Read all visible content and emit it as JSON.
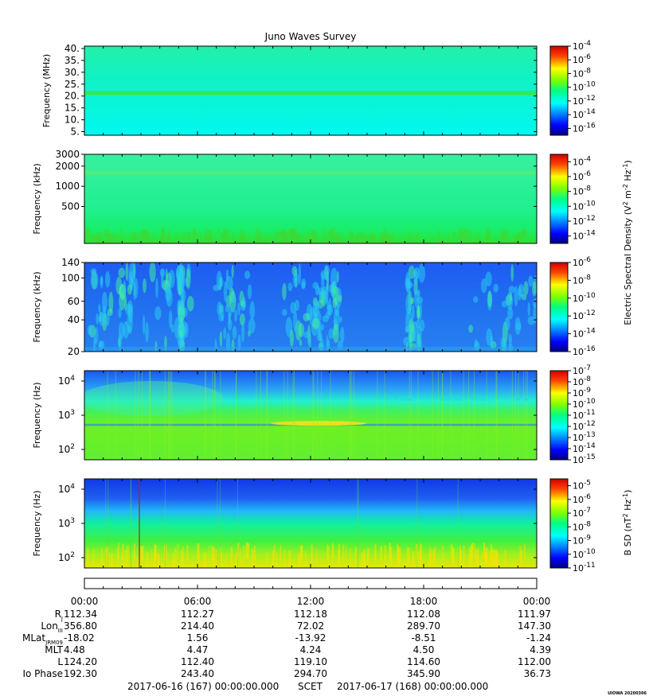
{
  "title": "Juno Waves Survey",
  "chart_data": [
    {
      "type": "heatmap",
      "ylabel": "Frequency (MHz)",
      "yscale": "linear",
      "ylim": [
        3.5,
        41
      ],
      "yticks": [
        "40.",
        "35.",
        "30.",
        "25.",
        "20.",
        "15.",
        "10.",
        "5."
      ],
      "yticks_values": [
        40,
        35,
        30,
        25,
        20,
        15,
        10,
        5
      ],
      "colorbar": {
        "label": "",
        "exponents": [
          "-4",
          "-6",
          "-8",
          "-10",
          "-12",
          "-14",
          "-16"
        ],
        "range_exp": [
          -17,
          -4
        ]
      }
    },
    {
      "type": "heatmap",
      "ylabel": "Frequency (kHz)",
      "yscale": "log",
      "ylim": [
        140,
        3000
      ],
      "yticks": [
        "3000",
        "2000",
        "1000",
        "500"
      ],
      "yticks_values": [
        3000,
        2000,
        1000,
        500
      ],
      "colorbar": {
        "label": "",
        "exponents": [
          "-4",
          "-6",
          "-8",
          "-10",
          "-12",
          "-14"
        ],
        "range_exp": [
          -15,
          -3
        ]
      }
    },
    {
      "type": "heatmap",
      "ylabel": "Frequency (kHz)",
      "yscale": "log",
      "ylim": [
        20,
        140
      ],
      "yticks": [
        "140",
        "100",
        "60",
        "40",
        "20"
      ],
      "yticks_values": [
        140,
        100,
        60,
        40,
        20
      ],
      "colorbar": {
        "label": "",
        "exponents": [
          "-6",
          "-8",
          "-10",
          "-12",
          "-14",
          "-16"
        ],
        "range_exp": [
          -16,
          -6
        ]
      }
    },
    {
      "type": "heatmap",
      "ylabel": "Frequency (Hz)",
      "yscale": "log",
      "ylim": [
        50,
        20000
      ],
      "yticks": [
        "10",
        "10",
        "10"
      ],
      "yticks_sup": [
        "4",
        "3",
        "2"
      ],
      "yticks_values": [
        10000,
        1000,
        100
      ],
      "colorbar": {
        "label": "",
        "exponents": [
          "-7",
          "-8",
          "-9",
          "-10",
          "-11",
          "-12",
          "-13",
          "-14",
          "-15"
        ],
        "range_exp": [
          -15,
          -7
        ]
      }
    },
    {
      "type": "heatmap",
      "ylabel": "Frequency (Hz)",
      "yscale": "log",
      "ylim": [
        50,
        20000
      ],
      "yticks": [
        "10",
        "10",
        "10"
      ],
      "yticks_sup": [
        "4",
        "3",
        "2"
      ],
      "yticks_values": [
        10000,
        1000,
        100
      ],
      "colorbar": {
        "label": "",
        "exponents": [
          "-5",
          "-6",
          "-7",
          "-8",
          "-9",
          "-10",
          "-11"
        ],
        "range_exp": [
          -11,
          -4.5
        ]
      }
    }
  ],
  "e_colorbar_label": {
    "pre": "Electric Spectral Density (V",
    "sup1": "2",
    "mid": " m",
    "sup2": "-2",
    "mid2": " Hz",
    "sup3": "-1",
    "post": ")"
  },
  "b_colorbar_label": {
    "pre": "B SD (nT",
    "sup1": "2",
    "mid": " Hz",
    "sup2": "-1",
    "post": ")"
  },
  "time_ticks": [
    "00:00",
    "06:00",
    "12:00",
    "18:00",
    "00:00"
  ],
  "ephemeris": [
    {
      "label": "R",
      "sub": "J",
      "values": [
        "112.34",
        "112.27",
        "112.18",
        "112.08",
        "111.97"
      ]
    },
    {
      "label": "Lon",
      "sub": "III",
      "values": [
        "356.80",
        "214.40",
        "72.02",
        "289.70",
        "147.30"
      ]
    },
    {
      "label": "MLat",
      "sub": "JRM09",
      "values": [
        "-18.02",
        "1.56",
        "-13.92",
        "-8.51",
        "-1.24"
      ]
    },
    {
      "label": "MLT",
      "sub": "",
      "values": [
        "4.48",
        "4.47",
        "4.24",
        "4.50",
        "4.39"
      ]
    },
    {
      "label": "L",
      "sub": "",
      "values": [
        "124.20",
        "112.40",
        "119.10",
        "114.60",
        "112.00"
      ]
    },
    {
      "label": "Io Phase",
      "sub": "",
      "values": [
        "192.30",
        "243.40",
        "294.70",
        "345.90",
        "36.73"
      ]
    }
  ],
  "footer": {
    "start": "2017-06-16 (167) 00:00:00.000",
    "scet": "SCET",
    "end": "2017-06-17 (168) 00:00:00.000"
  },
  "stamp": "UIOWA 20200306"
}
